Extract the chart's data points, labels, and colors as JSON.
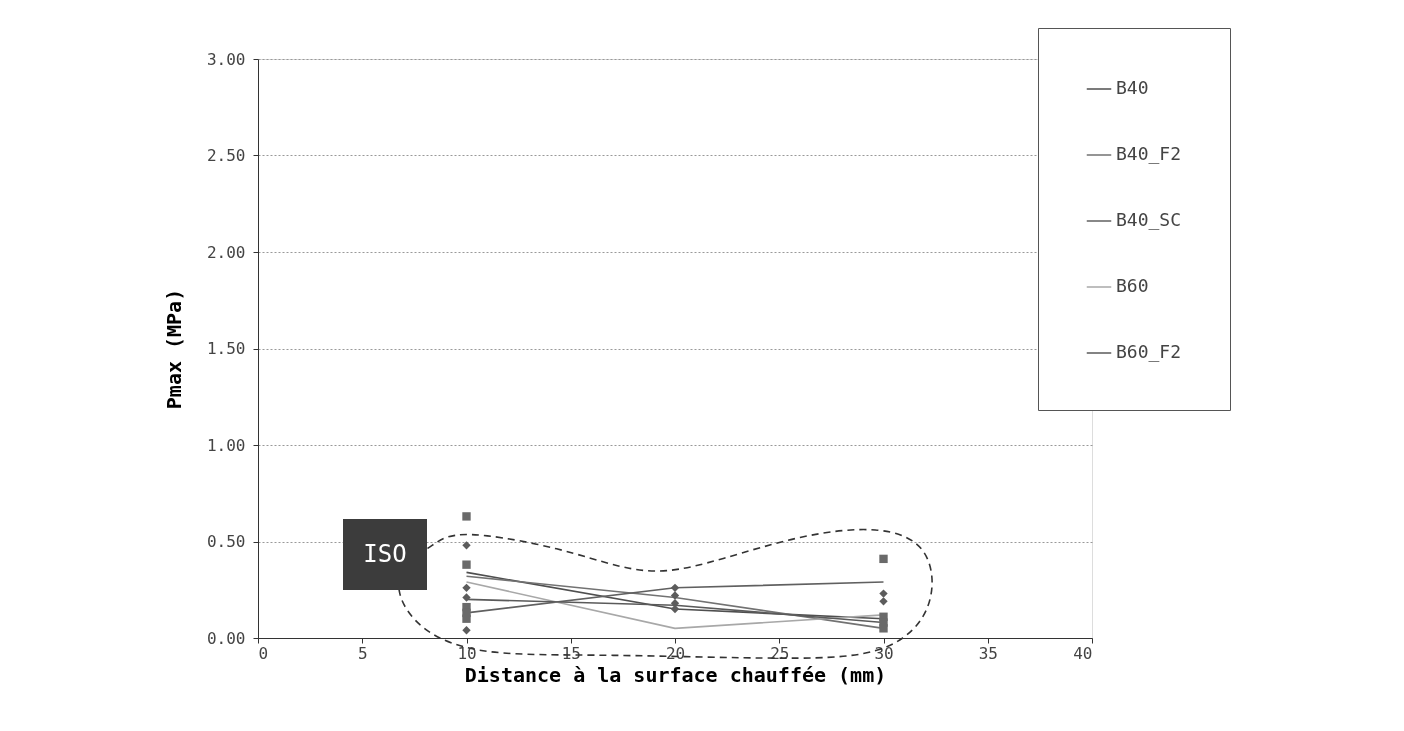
{
  "chart_data": {
    "type": "line",
    "xlabel": "Distance à la surface chauffée (mm)",
    "ylabel": "Pmax (MPa)",
    "xlim": [
      0,
      40
    ],
    "xticks": [
      0,
      5,
      10,
      15,
      20,
      25,
      30,
      35,
      40
    ],
    "ylim": [
      0,
      3
    ],
    "yticks": [
      {
        "value": 0,
        "label": "0.00"
      },
      {
        "value": 0.5,
        "label": "0.50"
      },
      {
        "value": 1,
        "label": "1.00"
      },
      {
        "value": 1.5,
        "label": "1.50"
      },
      {
        "value": 2,
        "label": "2.00"
      },
      {
        "value": 2.5,
        "label": "2.50"
      },
      {
        "value": 3,
        "label": "3.00"
      }
    ],
    "grid": "y",
    "legend": "top right",
    "line_style": "solid",
    "annotations": [
      "ISO"
    ],
    "series": [
      {
        "name": "B40",
        "color": "#4f4f4f",
        "x": [
          10,
          20,
          30
        ],
        "values": [
          0.34,
          0.15,
          0.1
        ]
      },
      {
        "name": "B40_F2",
        "color": "#727272",
        "x": [
          10,
          20,
          30
        ],
        "values": [
          0.32,
          0.21,
          0.05
        ]
      },
      {
        "name": "B40_SC",
        "color": "#606060",
        "x": [
          10,
          20,
          30
        ],
        "values": [
          0.13,
          0.26,
          0.29
        ]
      },
      {
        "name": "B60",
        "color": "#a8a8a8",
        "x": [
          10,
          20,
          30
        ],
        "values": [
          0.29,
          0.05,
          0.12
        ]
      },
      {
        "name": "B60_F2",
        "color": "#5a5a5a",
        "x": [
          10,
          20,
          30
        ],
        "values": [
          0.2,
          0.17,
          0.08
        ]
      },
      {
        "type": "scatter",
        "marker": "square",
        "color": "#6a6a6a",
        "x": [
          10,
          10,
          10,
          10,
          10,
          30,
          30,
          30,
          30
        ],
        "values": [
          0.63,
          0.38,
          0.16,
          0.13,
          0.1,
          0.41,
          0.11,
          0.08,
          0.05
        ]
      },
      {
        "type": "scatter",
        "marker": "diamond",
        "color": "#5c5c5c",
        "x": [
          10,
          10,
          10,
          10,
          20,
          20,
          20,
          20,
          30,
          30
        ],
        "values": [
          0.48,
          0.26,
          0.21,
          0.04,
          0.26,
          0.22,
          0.18,
          0.15,
          0.23,
          0.19
        ]
      }
    ]
  }
}
